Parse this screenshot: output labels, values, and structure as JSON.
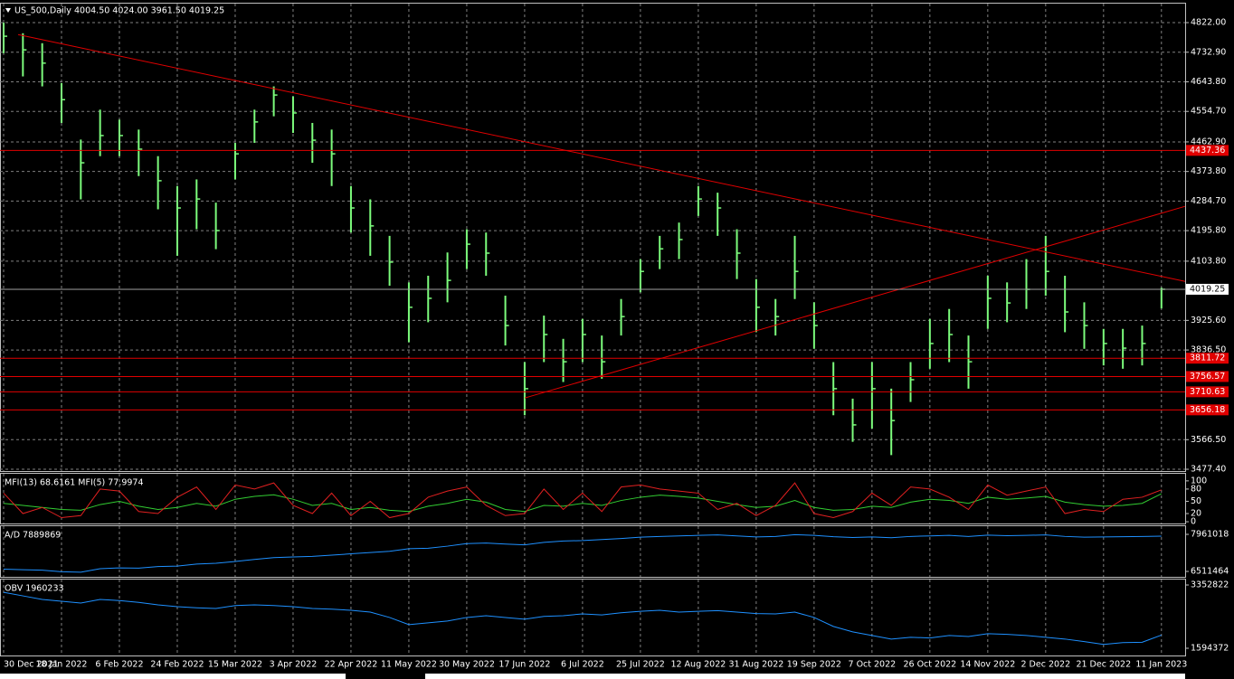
{
  "chart_data": [
    {
      "type": "ohlc",
      "title": "US_500,Daily",
      "subtitle": "4004.50 4024.00 3961.50 4019.25",
      "color": "#7cfc7c",
      "grid": true,
      "categories": [
        "30 Dec 2021",
        null,
        null,
        "18 Jan 2022",
        null,
        null,
        "6 Feb 2022",
        null,
        null,
        "24 Feb 2022",
        null,
        null,
        "15 Mar 2022",
        null,
        null,
        "3 Apr 2022",
        null,
        null,
        "22 Apr 2022",
        null,
        null,
        "11 May 2022",
        null,
        null,
        "30 May 2022",
        null,
        null,
        "17 Jun 2022",
        null,
        null,
        "6 Jul 2022",
        null,
        null,
        "25 Jul 2022",
        null,
        null,
        "12 Aug 2022",
        null,
        null,
        "31 Aug 2022",
        null,
        null,
        "19 Sep 2022",
        null,
        null,
        "7 Oct 2022",
        null,
        null,
        "26 Oct 2022",
        null,
        null,
        "14 Nov 2022",
        null,
        null,
        "2 Dec 2022",
        null,
        null,
        "21 Dec 2022",
        null,
        null,
        "11 Jan 2023"
      ],
      "high": [
        4822,
        4790,
        4760,
        4640,
        4470,
        4560,
        4530,
        4500,
        4420,
        4330,
        4350,
        4280,
        4460,
        4560,
        4630,
        4600,
        4520,
        4500,
        4330,
        4290,
        4180,
        4040,
        4060,
        4130,
        4200,
        4190,
        4000,
        3800,
        3940,
        3870,
        3930,
        3880,
        3990,
        4110,
        4180,
        4220,
        4330,
        4310,
        4200,
        4050,
        3990,
        4180,
        3980,
        3800,
        3690,
        3800,
        3720,
        3800,
        3930,
        3960,
        3880,
        4060,
        4040,
        4110,
        4180,
        4060,
        3980,
        3900,
        3900,
        3910,
        4024
      ],
      "low": [
        4730,
        4660,
        4630,
        4520,
        4290,
        4420,
        4420,
        4360,
        4260,
        4120,
        4200,
        4140,
        4350,
        4460,
        4540,
        4490,
        4400,
        4330,
        4190,
        4120,
        4030,
        3860,
        3920,
        3980,
        4080,
        4060,
        3850,
        3640,
        3800,
        3740,
        3800,
        3750,
        3880,
        4010,
        4080,
        4110,
        4240,
        4180,
        4050,
        3890,
        3880,
        3990,
        3840,
        3640,
        3560,
        3600,
        3520,
        3680,
        3780,
        3800,
        3720,
        3900,
        3920,
        3960,
        4000,
        3890,
        3840,
        3790,
        3780,
        3790,
        3961.5
      ],
      "close": [
        4781,
        4740,
        4700,
        4590,
        4400,
        4482,
        4482,
        4441,
        4346,
        4264,
        4291,
        4196,
        4427,
        4523,
        4604,
        4550,
        4468,
        4427,
        4264,
        4210,
        4101,
        3965,
        3992,
        4046,
        4155,
        4128,
        3910,
        3720,
        3883,
        3801,
        3883,
        3801,
        3937,
        4073,
        4141,
        4169,
        4291,
        4264,
        4128,
        3965,
        3937,
        4073,
        3910,
        3720,
        3611,
        3720,
        3624,
        3747,
        3856,
        3883,
        3801,
        3992,
        3978,
        4019,
        4073,
        3951,
        3910,
        3856,
        3842,
        3856,
        4019.25
      ],
      "ylim": [
        3472,
        4879.2
      ],
      "yticks": [
        {
          "value": 4822,
          "label": "4822.00"
        },
        {
          "value": 4732.9,
          "label": "4732.90"
        },
        {
          "value": 4643.8,
          "label": "4643.80"
        },
        {
          "value": 4554.7,
          "label": "4554.70"
        },
        {
          "value": 4462.9,
          "label": "4462.90"
        },
        {
          "value": 4373.8,
          "label": "4373.80"
        },
        {
          "value": 4284.7,
          "label": "4284.70"
        },
        {
          "value": 4195.8,
          "label": "4195.80"
        },
        {
          "value": 4103.8,
          "label": "4103.80"
        },
        {
          "value": 3925.6,
          "label": "3925.60"
        },
        {
          "value": 3836.5,
          "label": "3836.50"
        },
        {
          "value": 3566.5,
          "label": "3566.50"
        },
        {
          "value": 3477.4,
          "label": "3477.40"
        }
      ],
      "levels": [
        4437.36,
        3811.72,
        3756.57,
        3710.63,
        3656.18
      ],
      "level_color": "#e00000",
      "trendlines": [
        {
          "from": 4786,
          "to": 4043
        },
        {
          "from": 3692,
          "to": 4269
        }
      ]
    },
    {
      "type": "line",
      "title": "MFI(13) 68.6161  MFI(5) 77.9974",
      "ylim": [
        -4.3,
        117.4
      ],
      "yticks": [
        100,
        80,
        50,
        20,
        0
      ],
      "series": [
        {
          "name": "MFI(13)",
          "color": "#32cd32",
          "values": [
            45,
            40,
            35,
            30,
            28,
            42,
            50,
            38,
            30,
            35,
            45,
            38,
            55,
            62,
            66,
            55,
            40,
            45,
            30,
            35,
            28,
            25,
            38,
            45,
            55,
            48,
            30,
            25,
            40,
            38,
            45,
            40,
            52,
            60,
            65,
            62,
            58,
            50,
            42,
            35,
            38,
            52,
            35,
            28,
            30,
            38,
            35,
            48,
            55,
            52,
            45,
            60,
            55,
            58,
            62,
            48,
            42,
            38,
            40,
            45,
            68.6161
          ]
        },
        {
          "name": "MFI(5)",
          "color": "#e02020",
          "values": [
            70,
            20,
            35,
            10,
            15,
            80,
            75,
            25,
            20,
            60,
            85,
            30,
            90,
            80,
            95,
            40,
            20,
            70,
            15,
            50,
            10,
            20,
            60,
            75,
            85,
            40,
            15,
            20,
            80,
            30,
            70,
            25,
            85,
            90,
            80,
            75,
            70,
            30,
            45,
            15,
            40,
            95,
            20,
            10,
            25,
            70,
            40,
            85,
            80,
            60,
            30,
            90,
            65,
            75,
            85,
            20,
            30,
            25,
            55,
            60,
            77.9974
          ]
        }
      ]
    },
    {
      "type": "line",
      "title": "A/D 7889869",
      "ylim": [
        6300000,
        8280000
      ],
      "yticks": [
        7961018,
        6511464
      ],
      "series": [
        {
          "name": "A/D",
          "color": "#1e90ff",
          "values": [
            6600000,
            6580000,
            6560000,
            6500000,
            6480000,
            6620000,
            6650000,
            6640000,
            6700000,
            6720000,
            6800000,
            6830000,
            6900000,
            6980000,
            7050000,
            7080000,
            7100000,
            7150000,
            7200000,
            7250000,
            7300000,
            7400000,
            7420000,
            7500000,
            7600000,
            7620000,
            7580000,
            7550000,
            7650000,
            7700000,
            7720000,
            7760000,
            7800000,
            7850000,
            7880000,
            7900000,
            7920000,
            7940000,
            7900000,
            7860000,
            7880000,
            7950000,
            7920000,
            7870000,
            7840000,
            7860000,
            7830000,
            7880000,
            7900000,
            7920000,
            7880000,
            7930000,
            7910000,
            7920000,
            7940000,
            7880000,
            7850000,
            7860000,
            7870000,
            7880000,
            7889869
          ]
        }
      ]
    },
    {
      "type": "line",
      "title": "OBV 1960233",
      "ylim": [
        1393000,
        3504000
      ],
      "yticks": [
        3352822,
        1594372
      ],
      "series": [
        {
          "name": "OBV",
          "color": "#1e90ff",
          "values": [
            3150000,
            3050000,
            2950000,
            2900000,
            2850000,
            2950000,
            2920000,
            2870000,
            2800000,
            2750000,
            2720000,
            2700000,
            2780000,
            2800000,
            2780000,
            2750000,
            2700000,
            2680000,
            2650000,
            2600000,
            2450000,
            2250000,
            2300000,
            2350000,
            2450000,
            2500000,
            2450000,
            2400000,
            2480000,
            2500000,
            2550000,
            2520000,
            2580000,
            2620000,
            2650000,
            2600000,
            2620000,
            2640000,
            2600000,
            2560000,
            2550000,
            2600000,
            2450000,
            2200000,
            2050000,
            1950000,
            1850000,
            1900000,
            1880000,
            1950000,
            1920000,
            2000000,
            1980000,
            1950000,
            1900000,
            1850000,
            1780000,
            1700000,
            1750000,
            1760000,
            1960233
          ]
        }
      ]
    }
  ]
}
